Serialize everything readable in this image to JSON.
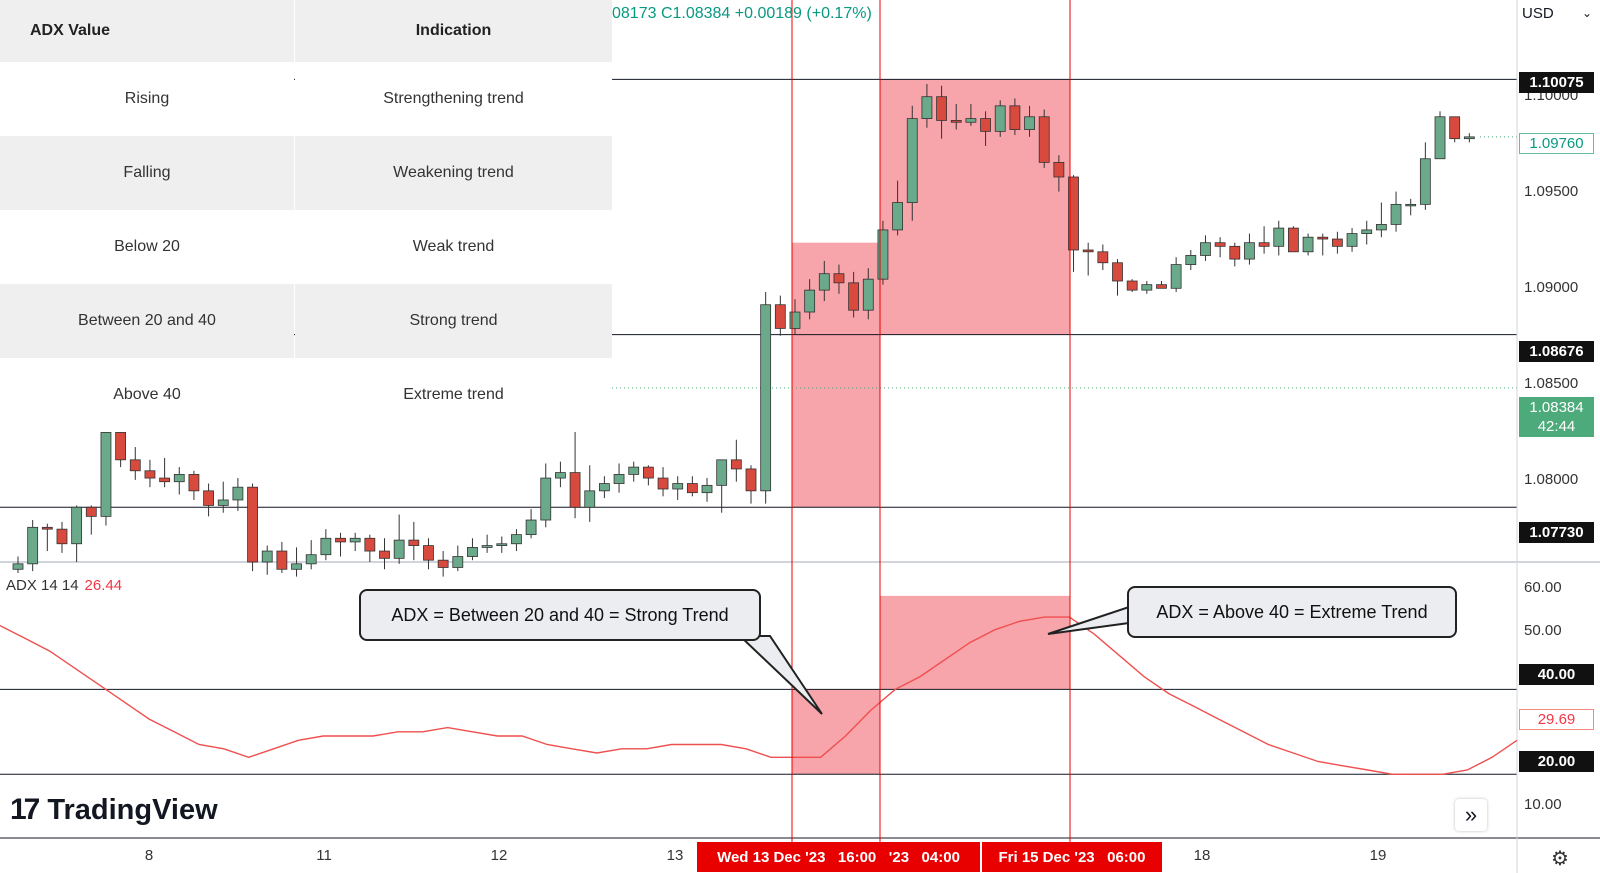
{
  "table": {
    "header": [
      "ADX Value",
      "Indication"
    ],
    "rows": [
      [
        "Rising",
        "Strengthening trend"
      ],
      [
        "Falling",
        "Weakening trend"
      ],
      [
        "Below 20",
        "Weak trend"
      ],
      [
        "Between 20 and 40",
        "Strong trend"
      ],
      [
        "Above 40",
        "Extreme trend"
      ]
    ]
  },
  "symbol_info": "08173  C1.08384  +0.00189 (+0.17%)",
  "currency_button": "USD",
  "price_axis": {
    "labels": [
      "1.10000",
      "1.09500",
      "1.09000",
      "1.08500",
      "1.08000"
    ],
    "marked_levels": [
      "1.10075",
      "1.08676",
      "1.07730"
    ],
    "current_close": "1.08384",
    "countdown": "42:44",
    "last_visible_close": "1.09760"
  },
  "adx_axis": {
    "labels": [
      "60.00",
      "50.00",
      "10.00"
    ],
    "marked_levels": [
      "40.00",
      "20.00"
    ],
    "current_value": "29.69"
  },
  "adx_legend": {
    "name": "ADX 14 14",
    "value": "26.44"
  },
  "callouts": {
    "strong": "ADX = Between 20 and 40 = Strong Trend",
    "extreme": "ADX = Above 40 = Extreme Trend"
  },
  "time_axis": {
    "labels": [
      "8",
      "11",
      "12",
      "13",
      "18",
      "19"
    ],
    "highlight_left": "Wed 13 Dec '23   16:00",
    "highlight_mid": "'23   04:00",
    "highlight_right": "Fri 15 Dec '23   06:00"
  },
  "logo": "TradingView",
  "colors": {
    "bull": "#6aa989",
    "bear": "#d84a3d",
    "zone": "#f7a4aa",
    "adx_line": "#f04f4f",
    "highlight": "#e80000"
  },
  "chart_data": {
    "type": "candlestick",
    "title": "",
    "y_price_range": [
      1.0743,
      1.1051
    ],
    "ohlc": [
      [
        1.0739,
        1.0746,
        1.0737,
        1.0742
      ],
      [
        1.0742,
        1.0766,
        1.0738,
        1.0762
      ],
      [
        1.0762,
        1.0764,
        1.0749,
        1.0761
      ],
      [
        1.0761,
        1.0765,
        1.0748,
        1.0753
      ],
      [
        1.0753,
        1.0774,
        1.0743,
        1.0773
      ],
      [
        1.0773,
        1.0774,
        1.0758,
        1.0768
      ],
      [
        1.0768,
        1.0817,
        1.0763,
        1.0814
      ],
      [
        1.0814,
        1.0818,
        1.0795,
        1.0799
      ],
      [
        1.0799,
        1.0806,
        1.0788,
        1.0793
      ],
      [
        1.0793,
        1.0799,
        1.0784,
        1.0789
      ],
      [
        1.0789,
        1.08,
        1.0784,
        1.0787
      ],
      [
        1.0787,
        1.0795,
        1.078,
        1.0791
      ],
      [
        1.0791,
        1.0793,
        1.0777,
        1.0782
      ],
      [
        1.0782,
        1.0786,
        1.0768,
        1.0774
      ],
      [
        1.0774,
        1.0787,
        1.077,
        1.0777
      ],
      [
        1.0777,
        1.0789,
        1.0771,
        1.0784
      ],
      [
        1.0784,
        1.0786,
        1.0738,
        1.0743
      ],
      [
        1.0743,
        1.0752,
        1.0736,
        1.0749
      ],
      [
        1.0749,
        1.0754,
        1.0737,
        1.0739
      ],
      [
        1.0739,
        1.0751,
        1.0735,
        1.0742
      ],
      [
        1.0742,
        1.0755,
        1.0739,
        1.0747
      ],
      [
        1.0747,
        1.0761,
        1.0744,
        1.0756
      ],
      [
        1.0756,
        1.0759,
        1.0746,
        1.0754
      ],
      [
        1.0754,
        1.0759,
        1.0749,
        1.0756
      ],
      [
        1.0756,
        1.0758,
        1.0743,
        1.0749
      ],
      [
        1.0749,
        1.0756,
        1.0739,
        1.0745
      ],
      [
        1.0745,
        1.0769,
        1.0742,
        1.0755
      ],
      [
        1.0755,
        1.0765,
        1.0744,
        1.0752
      ],
      [
        1.0752,
        1.0756,
        1.0739,
        1.0744
      ],
      [
        1.0744,
        1.0749,
        1.0735,
        1.074
      ],
      [
        1.074,
        1.0752,
        1.0738,
        1.0746
      ],
      [
        1.0746,
        1.0756,
        1.0744,
        1.0751
      ],
      [
        1.0751,
        1.0758,
        1.0748,
        1.0752
      ],
      [
        1.0752,
        1.0757,
        1.0748,
        1.0753
      ],
      [
        1.0753,
        1.0761,
        1.0749,
        1.0758
      ],
      [
        1.0758,
        1.0772,
        1.0756,
        1.0766
      ],
      [
        1.0766,
        1.0797,
        1.0762,
        1.0789
      ],
      [
        1.0789,
        1.0798,
        1.0784,
        1.0792
      ],
      [
        1.0792,
        1.0833,
        1.0767,
        1.0773
      ],
      [
        1.0773,
        1.0796,
        1.0765,
        1.0782
      ],
      [
        1.0782,
        1.079,
        1.0778,
        1.0786
      ],
      [
        1.0786,
        1.0797,
        1.0781,
        1.0791
      ],
      [
        1.0791,
        1.0798,
        1.0787,
        1.0795
      ],
      [
        1.0795,
        1.0796,
        1.0785,
        1.0789
      ],
      [
        1.0789,
        1.0795,
        1.0779,
        1.0783
      ],
      [
        1.0783,
        1.079,
        1.0777,
        1.0786
      ],
      [
        1.0786,
        1.079,
        1.0779,
        1.0781
      ],
      [
        1.0781,
        1.0789,
        1.0776,
        1.0785
      ],
      [
        1.0785,
        1.0799,
        1.077,
        1.0799
      ],
      [
        1.0799,
        1.081,
        1.0787,
        1.0794
      ],
      [
        1.0794,
        1.0796,
        1.0775,
        1.0782
      ],
      [
        1.0782,
        1.0891,
        1.0775,
        1.0884
      ],
      [
        1.0884,
        1.0889,
        1.0867,
        1.0871
      ],
      [
        1.0871,
        1.0887,
        1.0868,
        1.088
      ],
      [
        1.088,
        1.0898,
        1.0876,
        1.0892
      ],
      [
        1.0892,
        1.0908,
        1.0886,
        1.0901
      ],
      [
        1.0901,
        1.0906,
        1.089,
        1.0896
      ],
      [
        1.0896,
        1.0902,
        1.0877,
        1.0881
      ],
      [
        1.0881,
        1.0904,
        1.0876,
        1.0898
      ],
      [
        1.0898,
        1.093,
        1.0895,
        1.0925
      ],
      [
        1.0925,
        1.0952,
        1.0922,
        1.094
      ],
      [
        1.094,
        1.0993,
        1.093,
        1.0986
      ],
      [
        1.0986,
        1.1005,
        1.0981,
        1.0998
      ],
      [
        1.0998,
        1.1004,
        1.0975,
        1.0985
      ],
      [
        1.0985,
        1.0994,
        1.098,
        1.0984
      ],
      [
        1.0984,
        1.0994,
        1.0982,
        1.0986
      ],
      [
        1.0986,
        1.099,
        1.0971,
        1.0979
      ],
      [
        1.0979,
        1.0996,
        1.0976,
        1.0993
      ],
      [
        1.0993,
        1.0997,
        1.0977,
        1.098
      ],
      [
        1.098,
        1.0993,
        1.0976,
        1.0987
      ],
      [
        1.0987,
        1.0991,
        1.0959,
        1.0962
      ],
      [
        1.0962,
        1.0966,
        1.0946,
        1.0954
      ],
      [
        1.0954,
        1.0955,
        1.0902,
        1.0914
      ],
      [
        1.0914,
        1.0918,
        1.09,
        1.0913
      ],
      [
        1.0913,
        1.0917,
        1.0903,
        1.0907
      ],
      [
        1.0907,
        1.0909,
        1.0889,
        1.0897
      ],
      [
        1.0897,
        1.0898,
        1.0891,
        1.0892
      ],
      [
        1.0892,
        1.0897,
        1.089,
        1.0895
      ],
      [
        1.0895,
        1.0897,
        1.0893,
        1.0893
      ],
      [
        1.0893,
        1.091,
        1.0891,
        1.0906
      ],
      [
        1.0906,
        1.0914,
        1.0903,
        1.0911
      ],
      [
        1.0911,
        1.0922,
        1.0908,
        1.0918
      ],
      [
        1.0918,
        1.0921,
        1.091,
        1.0916
      ],
      [
        1.0916,
        1.0918,
        1.0905,
        1.0909
      ],
      [
        1.0909,
        1.0923,
        1.0906,
        1.0918
      ],
      [
        1.0918,
        1.0927,
        1.0912,
        1.0916
      ],
      [
        1.0916,
        1.093,
        1.0911,
        1.0926
      ],
      [
        1.0926,
        1.0927,
        1.0913,
        1.0913
      ],
      [
        1.0913,
        1.0923,
        1.0911,
        1.0921
      ],
      [
        1.0921,
        1.0923,
        1.0911,
        1.092
      ],
      [
        1.092,
        1.0924,
        1.0912,
        1.0916
      ],
      [
        1.0916,
        1.0926,
        1.0913,
        1.0923
      ],
      [
        1.0923,
        1.093,
        1.0917,
        1.0925
      ],
      [
        1.0925,
        1.094,
        1.0921,
        1.0928
      ],
      [
        1.0928,
        1.0946,
        1.0924,
        1.0939
      ],
      [
        1.0939,
        1.0942,
        1.0933,
        1.0939
      ],
      [
        1.0939,
        1.0973,
        1.0936,
        1.0964
      ],
      [
        1.0964,
        1.099,
        1.0964,
        1.0987
      ],
      [
        1.0987,
        1.0987,
        1.0973,
        1.0975
      ],
      [
        1.0975,
        1.0978,
        1.0973,
        1.0976
      ]
    ],
    "adx": [
      55,
      52,
      49,
      45,
      41,
      37,
      33,
      30,
      27,
      26,
      24,
      26,
      28,
      29,
      29,
      29,
      30,
      30,
      31,
      30,
      29,
      29,
      27,
      26,
      25,
      26,
      26,
      27,
      27,
      27,
      26,
      24,
      24,
      24,
      29,
      35,
      40,
      43,
      47,
      51,
      54,
      56,
      57,
      57,
      53,
      48,
      43,
      39,
      36,
      33,
      30,
      27,
      25,
      23,
      22,
      21,
      20,
      20,
      20,
      21,
      24,
      28
    ],
    "annotation_zones": [
      "1.07730 – 1.09180",
      "1.08676 – 1.10075"
    ]
  }
}
